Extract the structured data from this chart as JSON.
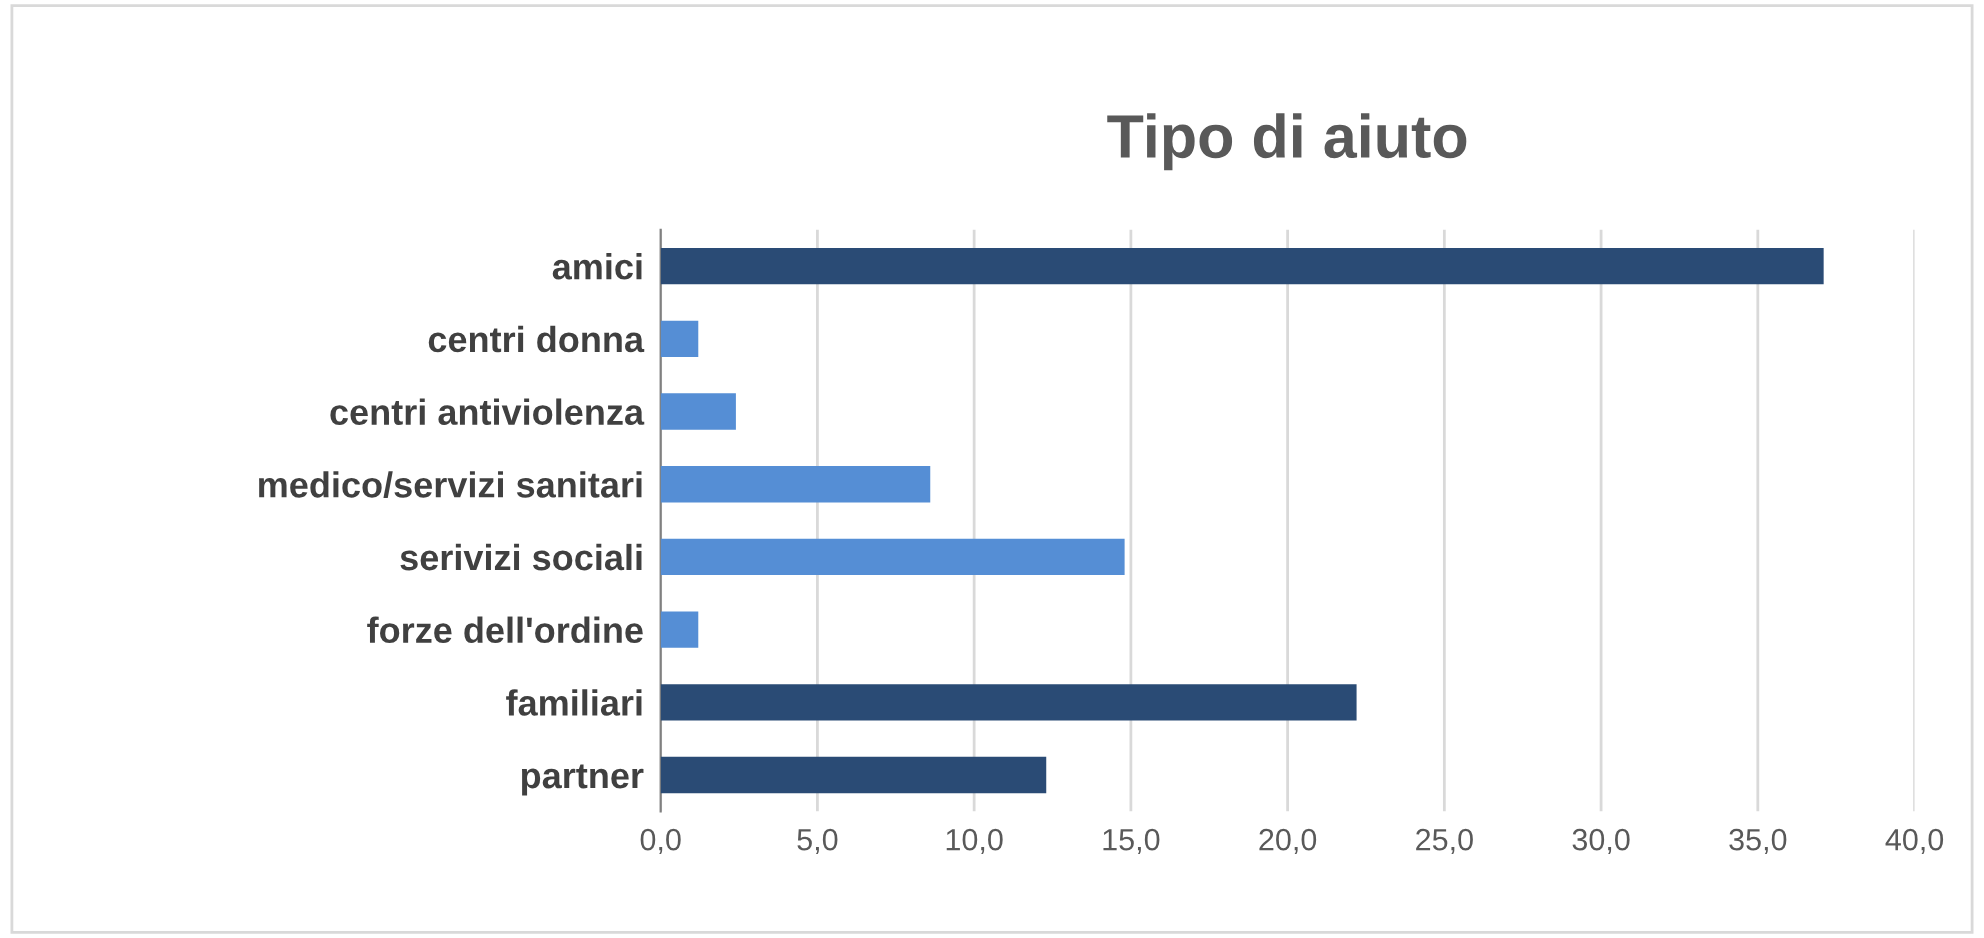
{
  "chart_data": {
    "type": "bar",
    "orientation": "horizontal",
    "title": "Tipo di aiuto",
    "categories": [
      "amici",
      "centri donna",
      "centri antiviolenza",
      "medico/servizi sanitari",
      "serivizi sociali",
      "forze dell'ordine",
      "familiari",
      "partner"
    ],
    "values": [
      37.1,
      1.2,
      2.4,
      8.6,
      14.8,
      1.2,
      22.2,
      12.3
    ],
    "colors": [
      "#2a4b75",
      "#558ed5",
      "#558ed5",
      "#558ed5",
      "#558ed5",
      "#558ed5",
      "#2a4b75",
      "#2a4b75"
    ],
    "xlim": [
      0,
      40
    ],
    "xticks": [
      {
        "value": 0,
        "label": "0,0"
      },
      {
        "value": 5,
        "label": "5,0"
      },
      {
        "value": 10,
        "label": "10,0"
      },
      {
        "value": 15,
        "label": "15,0"
      },
      {
        "value": 20,
        "label": "20,0"
      },
      {
        "value": 25,
        "label": "25,0"
      },
      {
        "value": 30,
        "label": "30,0"
      },
      {
        "value": 35,
        "label": "35,0"
      },
      {
        "value": 40,
        "label": "40,0"
      }
    ],
    "grid": "x",
    "legend": false
  }
}
